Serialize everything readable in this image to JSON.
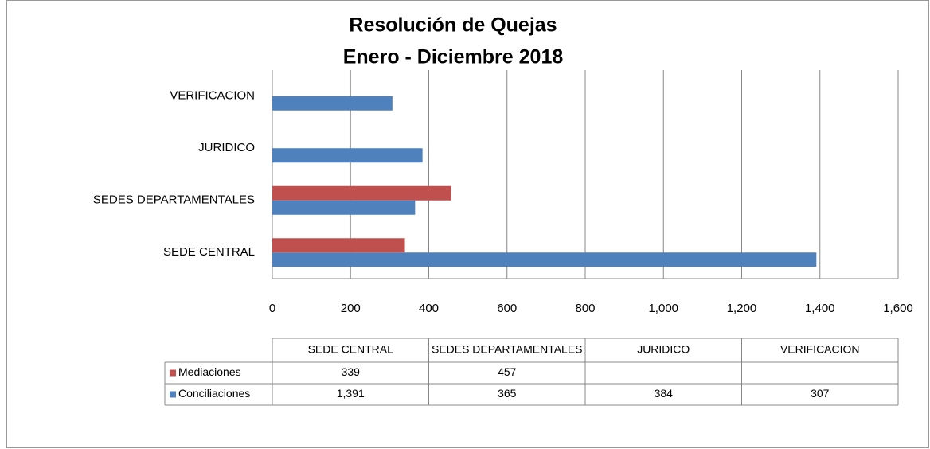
{
  "chart_data": {
    "type": "hbar",
    "title": "Resolución de Quejas",
    "subtitle": "Enero - Diciembre  2018",
    "categories": [
      "SEDE CENTRAL",
      "SEDES DEPARTAMENTALES",
      "JURIDICO",
      "VERIFICACION"
    ],
    "series": [
      {
        "name": "Mediaciones",
        "color": "#c0504d",
        "values": [
          339,
          457,
          null,
          null
        ],
        "value_labels": [
          "339",
          "457",
          null,
          null
        ]
      },
      {
        "name": "Conciliaciones",
        "color": "#4f81bd",
        "values": [
          1391,
          365,
          384,
          307
        ],
        "value_labels": [
          "1,391",
          "365",
          "384",
          "307"
        ]
      }
    ],
    "xlim": [
      0,
      1600
    ],
    "xticks": [
      0,
      200,
      400,
      600,
      800,
      {
        "value": 1000,
        "label": "1,000"
      },
      {
        "value": 1200,
        "label": "1,200"
      },
      {
        "value": 1400,
        "label": "1,400"
      },
      {
        "value": 1600,
        "label": "1,600"
      }
    ],
    "grid": true,
    "data_table": true
  }
}
